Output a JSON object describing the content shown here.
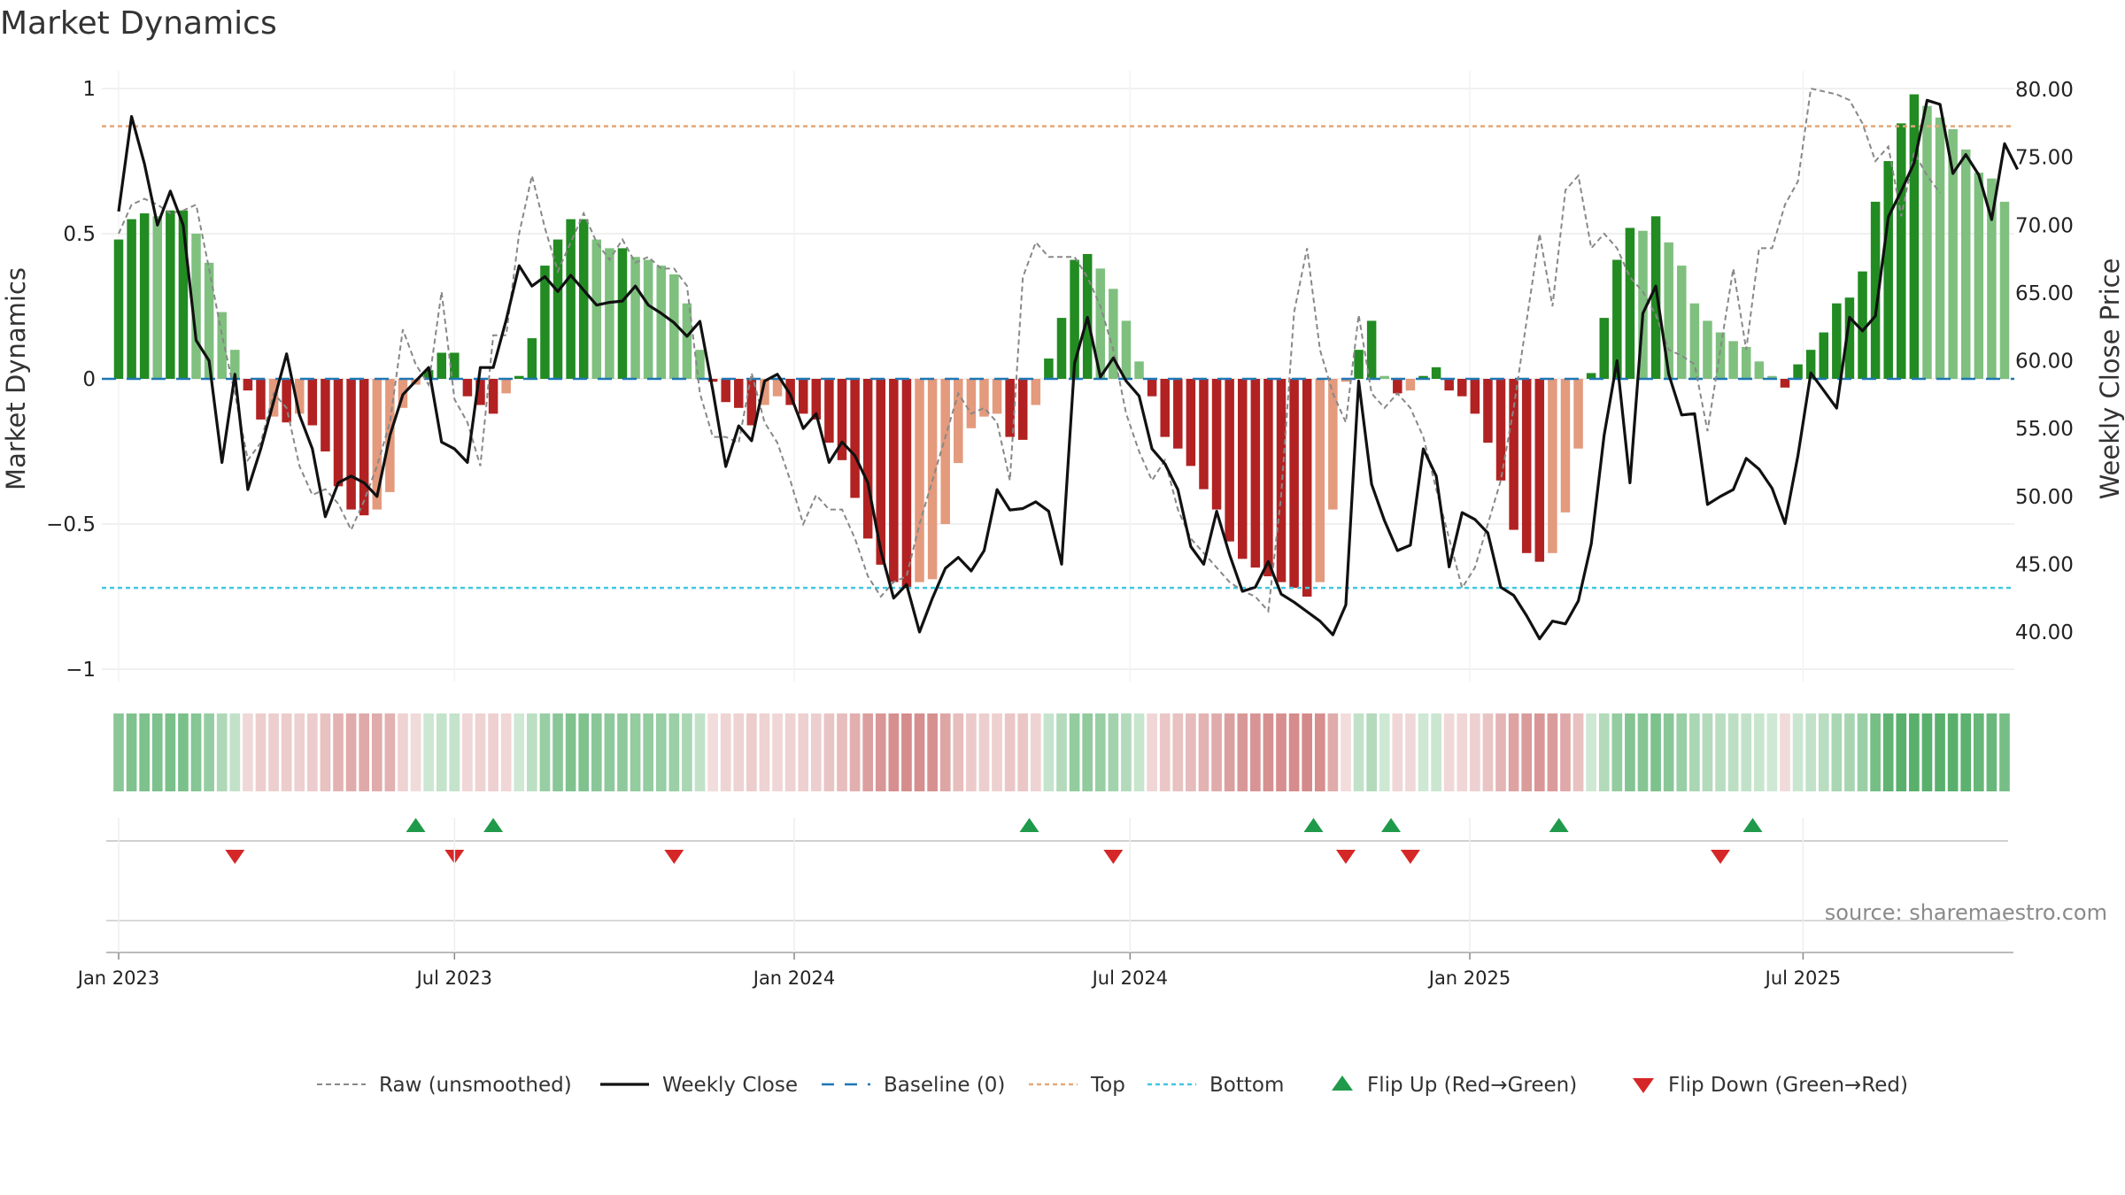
{
  "chart_data": {
    "type": "bar",
    "title": "Market Dynamics",
    "ylabel_left": "Market Dynamics",
    "ylabel_right": "Weekly Close Price",
    "source": "source: sharemaestro.com",
    "left_ticks": [
      {
        "v": 1,
        "label": "1"
      },
      {
        "v": 0.5,
        "label": "0.5"
      },
      {
        "v": 0,
        "label": "0"
      },
      {
        "v": -0.5,
        "label": "−0.5"
      },
      {
        "v": -1,
        "label": "−1"
      }
    ],
    "right_ticks": [
      "40.00",
      "45.00",
      "50.00",
      "55.00",
      "60.00",
      "65.00",
      "70.00",
      "75.00",
      "80.00"
    ],
    "ylim_left": [
      -1,
      1
    ],
    "ylim_right": [
      38,
      80
    ],
    "x_ticks": [
      {
        "label": "Jan 2023",
        "week": 0
      },
      {
        "label": "Jul 2023",
        "week": 26
      },
      {
        "label": "Jan 2024",
        "week": 52.3
      },
      {
        "label": "Jul 2024",
        "week": 78.3
      },
      {
        "label": "Jan 2025",
        "week": 104.6
      },
      {
        "label": "Jul 2025",
        "week": 130.4
      }
    ],
    "top_level": 0.87,
    "bottom_level": -0.72,
    "smoothed": [
      0.48,
      0.55,
      0.57,
      0.56,
      0.58,
      0.58,
      0.5,
      0.4,
      0.23,
      0.1,
      -0.04,
      -0.14,
      -0.13,
      -0.15,
      -0.12,
      -0.16,
      -0.25,
      -0.37,
      -0.45,
      -0.47,
      -0.45,
      -0.39,
      -0.1,
      -0.02,
      0.03,
      0.09,
      0.09,
      -0.06,
      -0.09,
      -0.12,
      -0.05,
      0.01,
      0.14,
      0.39,
      0.48,
      0.55,
      0.55,
      0.48,
      0.45,
      0.45,
      0.42,
      0.41,
      0.39,
      0.36,
      0.26,
      0.1,
      -0.01,
      -0.08,
      -0.1,
      -0.16,
      -0.09,
      -0.06,
      -0.09,
      -0.12,
      -0.14,
      -0.22,
      -0.28,
      -0.41,
      -0.55,
      -0.64,
      -0.7,
      -0.72,
      -0.7,
      -0.69,
      -0.5,
      -0.29,
      -0.17,
      -0.13,
      -0.12,
      -0.2,
      -0.21,
      -0.09,
      0.07,
      0.21,
      0.41,
      0.43,
      0.38,
      0.31,
      0.2,
      0.06,
      -0.06,
      -0.2,
      -0.24,
      -0.3,
      -0.38,
      -0.45,
      -0.56,
      -0.62,
      -0.65,
      -0.68,
      -0.7,
      -0.72,
      -0.75,
      -0.7,
      -0.45,
      -0.01,
      0.1,
      0.2,
      0.01,
      -0.05,
      -0.04,
      0.01,
      0.04,
      -0.04,
      -0.06,
      -0.12,
      -0.22,
      -0.35,
      -0.52,
      -0.6,
      -0.63,
      -0.6,
      -0.46,
      -0.24,
      0.02,
      0.21,
      0.41,
      0.52,
      0.51,
      0.56,
      0.47,
      0.39,
      0.26,
      0.2,
      0.16,
      0.13,
      0.11,
      0.06,
      0.01,
      -0.03,
      0.05,
      0.1,
      0.16,
      0.26,
      0.28,
      0.37,
      0.61,
      0.75,
      0.88,
      0.98,
      0.94,
      0.9,
      0.86,
      0.79,
      0.71,
      0.69,
      0.61
    ],
    "raw": [
      0.5,
      0.6,
      0.62,
      0.6,
      0.57,
      0.58,
      0.6,
      0.38,
      0.15,
      -0.05,
      -0.28,
      -0.22,
      -0.05,
      -0.1,
      -0.3,
      -0.4,
      -0.38,
      -0.43,
      -0.52,
      -0.42,
      -0.3,
      -0.15,
      0.17,
      0.05,
      -0.02,
      0.3,
      -0.07,
      -0.15,
      -0.3,
      0.15,
      0.15,
      0.5,
      0.7,
      0.52,
      0.37,
      0.47,
      0.57,
      0.47,
      0.41,
      0.48,
      0.4,
      0.42,
      0.38,
      0.38,
      0.32,
      -0.05,
      -0.2,
      -0.2,
      -0.22,
      0.02,
      -0.15,
      -0.22,
      -0.35,
      -0.5,
      -0.4,
      -0.45,
      -0.45,
      -0.55,
      -0.68,
      -0.75,
      -0.7,
      -0.68,
      -0.5,
      -0.35,
      -0.2,
      -0.05,
      -0.12,
      -0.1,
      -0.15,
      -0.35,
      0.35,
      0.47,
      0.42,
      0.42,
      0.42,
      0.35,
      0.25,
      0.1,
      -0.12,
      -0.25,
      -0.35,
      -0.28,
      -0.45,
      -0.55,
      -0.6,
      -0.65,
      -0.7,
      -0.73,
      -0.75,
      -0.8,
      -0.4,
      0.23,
      0.45,
      0.1,
      -0.05,
      -0.15,
      0.22,
      -0.05,
      -0.1,
      -0.05,
      -0.1,
      -0.2,
      -0.38,
      -0.55,
      -0.72,
      -0.65,
      -0.5,
      -0.35,
      -0.1,
      0.2,
      0.5,
      0.25,
      0.65,
      0.7,
      0.45,
      0.5,
      0.45,
      0.35,
      0.3,
      0.22,
      0.1,
      0.08,
      0.05,
      -0.18,
      0.1,
      0.38,
      0.1,
      0.45,
      0.45,
      0.6,
      0.68,
      1.0,
      0.99,
      0.98,
      0.96,
      0.88,
      0.75,
      0.8,
      0.56,
      0.78,
      0.7,
      0.64
    ],
    "close": [
      71,
      78,
      74.5,
      70,
      72.5,
      70,
      61.5,
      60,
      52.5,
      59,
      50.5,
      53.5,
      57,
      60.5,
      56,
      53.5,
      48.5,
      51,
      51.5,
      51,
      50,
      54.5,
      57.5,
      58.5,
      59.5,
      54,
      53.5,
      52.5,
      59.5,
      59.5,
      63,
      67,
      65.5,
      66.2,
      65.1,
      66.3,
      65.2,
      64.1,
      64.3,
      64.4,
      65.5,
      64.1,
      63.5,
      62.8,
      61.8,
      62.9,
      57.8,
      52.2,
      55.2,
      54.1,
      58.5,
      59.0,
      57.5,
      55.0,
      56.1,
      52.5,
      54.0,
      53.0,
      51.0,
      46.0,
      42.5,
      43.5,
      40.0,
      42.5,
      44.7,
      45.5,
      44.5,
      46.0,
      50.5,
      49.0,
      49.1,
      49.6,
      48.9,
      45.0,
      59.8,
      63.2,
      58.8,
      60.2,
      58.5,
      57.4,
      53.5,
      52.4,
      50.5,
      46.3,
      45.0,
      48.9,
      45.7,
      43.0,
      43.3,
      45.2,
      42.8,
      42.2,
      41.5,
      40.8,
      39.8,
      42.0,
      58.5,
      50.9,
      48.2,
      46.0,
      46.4,
      53.5,
      51.5,
      44.8,
      48.8,
      48.3,
      47.3,
      43.3,
      42.7,
      41.2,
      39.5,
      40.8,
      40.6,
      42.3,
      46.5,
      54.5,
      60.0,
      51.0,
      63.5,
      65.5,
      59.0,
      56.0,
      56.1,
      49.4,
      50.0,
      50.5,
      52.8,
      52.0,
      50.6,
      48.0,
      53.0,
      59.1,
      57.8,
      56.5,
      63.2,
      62.2,
      63.3,
      70.6,
      72.5,
      74.6,
      79.2,
      78.9,
      73.8,
      75.2,
      73.7,
      70.4,
      76.0,
      74.1
    ],
    "flip_up_weeks": [
      23,
      29,
      70.5,
      92.5,
      98.5,
      111.5,
      126.5
    ],
    "flip_down_weeks": [
      9,
      26,
      43,
      77,
      95,
      100,
      124
    ],
    "legend": [
      {
        "key": "raw",
        "label": "Raw (unsmoothed)"
      },
      {
        "key": "close",
        "label": "Weekly Close"
      },
      {
        "key": "baseline",
        "label": "Baseline (0)"
      },
      {
        "key": "top",
        "label": "Top"
      },
      {
        "key": "bottom",
        "label": "Bottom"
      },
      {
        "key": "flip_up",
        "label": "Flip Up (Red→Green)"
      },
      {
        "key": "flip_down",
        "label": "Flip Down (Green→Red)"
      }
    ],
    "colors": {
      "green_strong": "#228b22",
      "green_light": "#7fc07f",
      "red_strong": "#b22222",
      "red_light": "#e49a7c",
      "raw": "#888888",
      "close": "#111111",
      "baseline": "#1f77b4",
      "top": "#e4a878",
      "bottom": "#40c8e0",
      "flip_up": "#1f9a4a",
      "flip_down": "#d62728"
    }
  }
}
